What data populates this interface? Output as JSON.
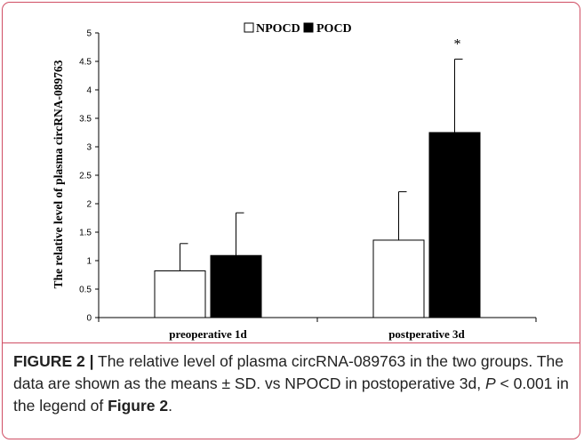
{
  "chart_data": {
    "type": "bar",
    "categories": [
      "preoperative 1d",
      "postperative 3d"
    ],
    "series": [
      {
        "name": "NPOCD",
        "values": [
          0.82,
          1.36
        ],
        "error": [
          0.48,
          0.85
        ],
        "color": "#ffffff"
      },
      {
        "name": "POCD",
        "values": [
          1.09,
          3.25
        ],
        "error": [
          0.75,
          1.29
        ],
        "color": "#000000"
      }
    ],
    "ylabel": "The relative level of plasma circRNA-089763",
    "xlabel": "",
    "ylim": [
      0,
      5
    ],
    "yticks": [
      "0",
      "0.5",
      "1",
      "1.5",
      "2",
      "2.5",
      "3",
      "3.5",
      "4",
      "4.5",
      "5"
    ],
    "annotations": [
      {
        "category": "postperative 3d",
        "series": "POCD",
        "text": "*"
      }
    ],
    "legend": "top-center",
    "grid": false
  },
  "caption": {
    "label": "FIGURE 2 |",
    "text_1": " The relative level of plasma circRNA-089763 in the two groups. The data are shown as the means ± SD. vs NPOCD in postoperative 3d, ",
    "p_symbol": "P",
    "text_2": " < 0.001 in the legend of ",
    "figure_ref": "Figure 2",
    "text_3": "."
  }
}
